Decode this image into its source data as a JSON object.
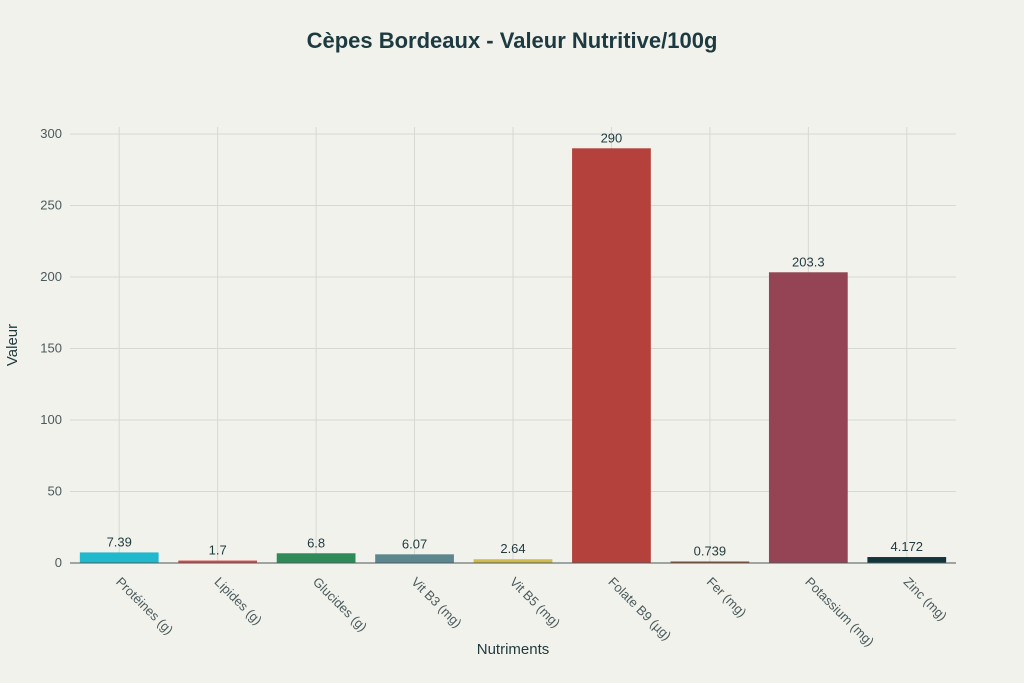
{
  "chart_data": {
    "type": "bar",
    "title": "Cèpes Bordeaux - Valeur Nutritive/100g",
    "xlabel": "Nutriments",
    "ylabel": "Valeur",
    "categories": [
      "Protéines (g)",
      "Lipides (g)",
      "Glucides (g)",
      "Vit B3 (mg)",
      "Vit B5 (mg)",
      "Folate B9 (µg)",
      "Fer (mg)",
      "Potassium (mg)",
      "Zinc (mg)"
    ],
    "values": [
      7.39,
      1.7,
      6.8,
      6.07,
      2.64,
      290,
      0.739,
      203.3,
      4.172
    ],
    "value_labels": [
      "7.39",
      "1.7",
      "6.8",
      "6.07",
      "2.64",
      "290",
      "0.739",
      "203.3",
      "4.172"
    ],
    "colors": [
      "#1fb8cd",
      "#db4545",
      "#2e8b57",
      "#5d878f",
      "#d2ba4c",
      "#b4413c",
      "#964325",
      "#944454",
      "#13343b"
    ],
    "ylim": [
      0,
      300
    ],
    "yticks": [
      0,
      50,
      100,
      150,
      200,
      250,
      300
    ],
    "grid": true
  }
}
